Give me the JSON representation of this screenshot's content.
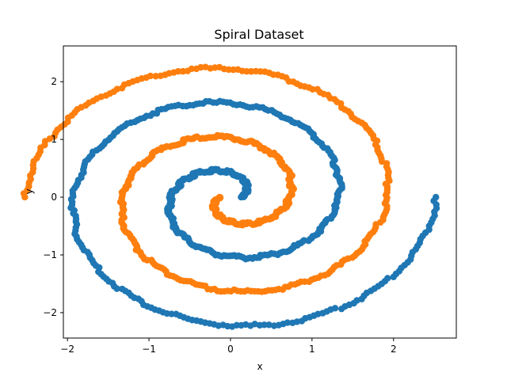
{
  "chart_data": {
    "type": "scatter",
    "title": "Spiral Dataset",
    "xlabel": "x",
    "ylabel": "y",
    "xlim": [
      -2.05,
      2.77
    ],
    "ylim": [
      -2.44,
      2.62
    ],
    "xticks": [
      -2,
      -1,
      0,
      1,
      2
    ],
    "yticks": [
      -2,
      -1,
      0,
      1,
      2
    ],
    "grid": false,
    "legend": "none",
    "series": [
      {
        "color": "#1f77b4",
        "spiral": {
          "r_start": 0.13,
          "r_end": 2.52,
          "theta_start": 0.0,
          "theta_end": 12.566,
          "points": 500
        }
      },
      {
        "color": "#ff7f0e",
        "spiral": {
          "r_start": 0.13,
          "r_end": 2.52,
          "theta_start": 3.1416,
          "theta_end": 15.708,
          "points": 500
        }
      }
    ]
  }
}
